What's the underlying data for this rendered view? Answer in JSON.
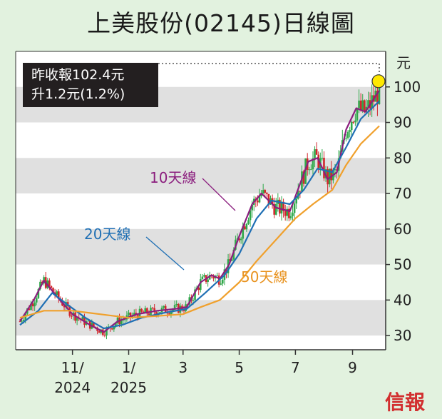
{
  "title": "上美股份(02145)日線圖",
  "infobox": {
    "line1": "昨收報102.4元",
    "line2": "升1.2元(1.2%)"
  },
  "brand": "信報",
  "colors": {
    "background": "#e2f2df",
    "ma10": "#8b1e7e",
    "ma20": "#1f6fb4",
    "ma50": "#f0a02c",
    "up": "#2fa84a",
    "down": "#d2262c",
    "band": "#e0e0e0",
    "highlight": "#ffe800"
  },
  "chart_data": {
    "type": "line",
    "title": "上美股份(02145)日線圖",
    "ylabel": "元",
    "ylim": [
      26,
      110
    ],
    "y_ticks": [
      30,
      40,
      50,
      60,
      70,
      80,
      90,
      100
    ],
    "grid": "alternating horizontal bands",
    "x_ticks": [
      {
        "date": "2024-11-01",
        "label": "11/",
        "label2": "2024"
      },
      {
        "date": "2025-01-01",
        "label": "1/",
        "label2": "2025"
      },
      {
        "date": "2025-03-01",
        "label": "3",
        "label2": ""
      },
      {
        "date": "2025-05-01",
        "label": "5",
        "label2": ""
      },
      {
        "date": "2025-07-01",
        "label": "7",
        "label2": ""
      },
      {
        "date": "2025-09-01",
        "label": "9",
        "label2": ""
      }
    ],
    "x_range": [
      "2024-09-05",
      "2025-09-30"
    ],
    "last_close": 102.4,
    "series": [
      {
        "name": "10天線",
        "color": "#8b1e7e",
        "points": [
          [
            "2024-09-05",
            34
          ],
          [
            "2024-09-20",
            40
          ],
          [
            "2024-10-01",
            45.5
          ],
          [
            "2024-10-15",
            41
          ],
          [
            "2024-11-01",
            36
          ],
          [
            "2024-11-20",
            33
          ],
          [
            "2024-12-05",
            31
          ],
          [
            "2024-12-20",
            34
          ],
          [
            "2025-01-10",
            36
          ],
          [
            "2025-02-01",
            37
          ],
          [
            "2025-02-20",
            37.5
          ],
          [
            "2025-03-05",
            38
          ],
          [
            "2025-03-20",
            45
          ],
          [
            "2025-04-01",
            47
          ],
          [
            "2025-04-10",
            46
          ],
          [
            "2025-04-20",
            50
          ],
          [
            "2025-05-01",
            58
          ],
          [
            "2025-05-15",
            67
          ],
          [
            "2025-05-25",
            70
          ],
          [
            "2025-06-10",
            66
          ],
          [
            "2025-06-25",
            65
          ],
          [
            "2025-07-05",
            72
          ],
          [
            "2025-07-15",
            79
          ],
          [
            "2025-07-25",
            80
          ],
          [
            "2025-08-05",
            74
          ],
          [
            "2025-08-15",
            76
          ],
          [
            "2025-08-25",
            88
          ],
          [
            "2025-09-05",
            94
          ],
          [
            "2025-09-15",
            93
          ],
          [
            "2025-09-30",
            99
          ]
        ]
      },
      {
        "name": "20天線",
        "color": "#1f6fb4",
        "points": [
          [
            "2024-09-05",
            33
          ],
          [
            "2024-09-25",
            37
          ],
          [
            "2024-10-10",
            42
          ],
          [
            "2024-10-25",
            39
          ],
          [
            "2024-11-15",
            35
          ],
          [
            "2024-12-05",
            32
          ],
          [
            "2024-12-25",
            33
          ],
          [
            "2025-01-15",
            35
          ],
          [
            "2025-02-10",
            36.5
          ],
          [
            "2025-03-05",
            37.5
          ],
          [
            "2025-03-25",
            42
          ],
          [
            "2025-04-15",
            47
          ],
          [
            "2025-05-01",
            53
          ],
          [
            "2025-05-20",
            63
          ],
          [
            "2025-06-05",
            68
          ],
          [
            "2025-06-25",
            67
          ],
          [
            "2025-07-10",
            71
          ],
          [
            "2025-07-25",
            77
          ],
          [
            "2025-08-10",
            76
          ],
          [
            "2025-08-25",
            83
          ],
          [
            "2025-09-10",
            91
          ],
          [
            "2025-09-30",
            96
          ]
        ]
      },
      {
        "name": "50天線",
        "color": "#f0a02c",
        "points": [
          [
            "2024-09-05",
            35
          ],
          [
            "2024-10-01",
            37
          ],
          [
            "2024-11-01",
            37
          ],
          [
            "2024-12-01",
            36
          ],
          [
            "2025-01-01",
            35
          ],
          [
            "2025-02-01",
            35.5
          ],
          [
            "2025-03-01",
            36
          ],
          [
            "2025-03-20",
            38
          ],
          [
            "2025-04-10",
            40
          ],
          [
            "2025-05-01",
            45
          ],
          [
            "2025-05-20",
            51
          ],
          [
            "2025-06-10",
            57
          ],
          [
            "2025-07-01",
            63
          ],
          [
            "2025-07-20",
            67
          ],
          [
            "2025-08-10",
            71
          ],
          [
            "2025-08-25",
            78
          ],
          [
            "2025-09-10",
            84
          ],
          [
            "2025-09-30",
            89
          ]
        ]
      }
    ]
  },
  "annotations": {
    "ma10_label": "10天線",
    "ma20_label": "20天線",
    "ma50_label": "50天線"
  }
}
